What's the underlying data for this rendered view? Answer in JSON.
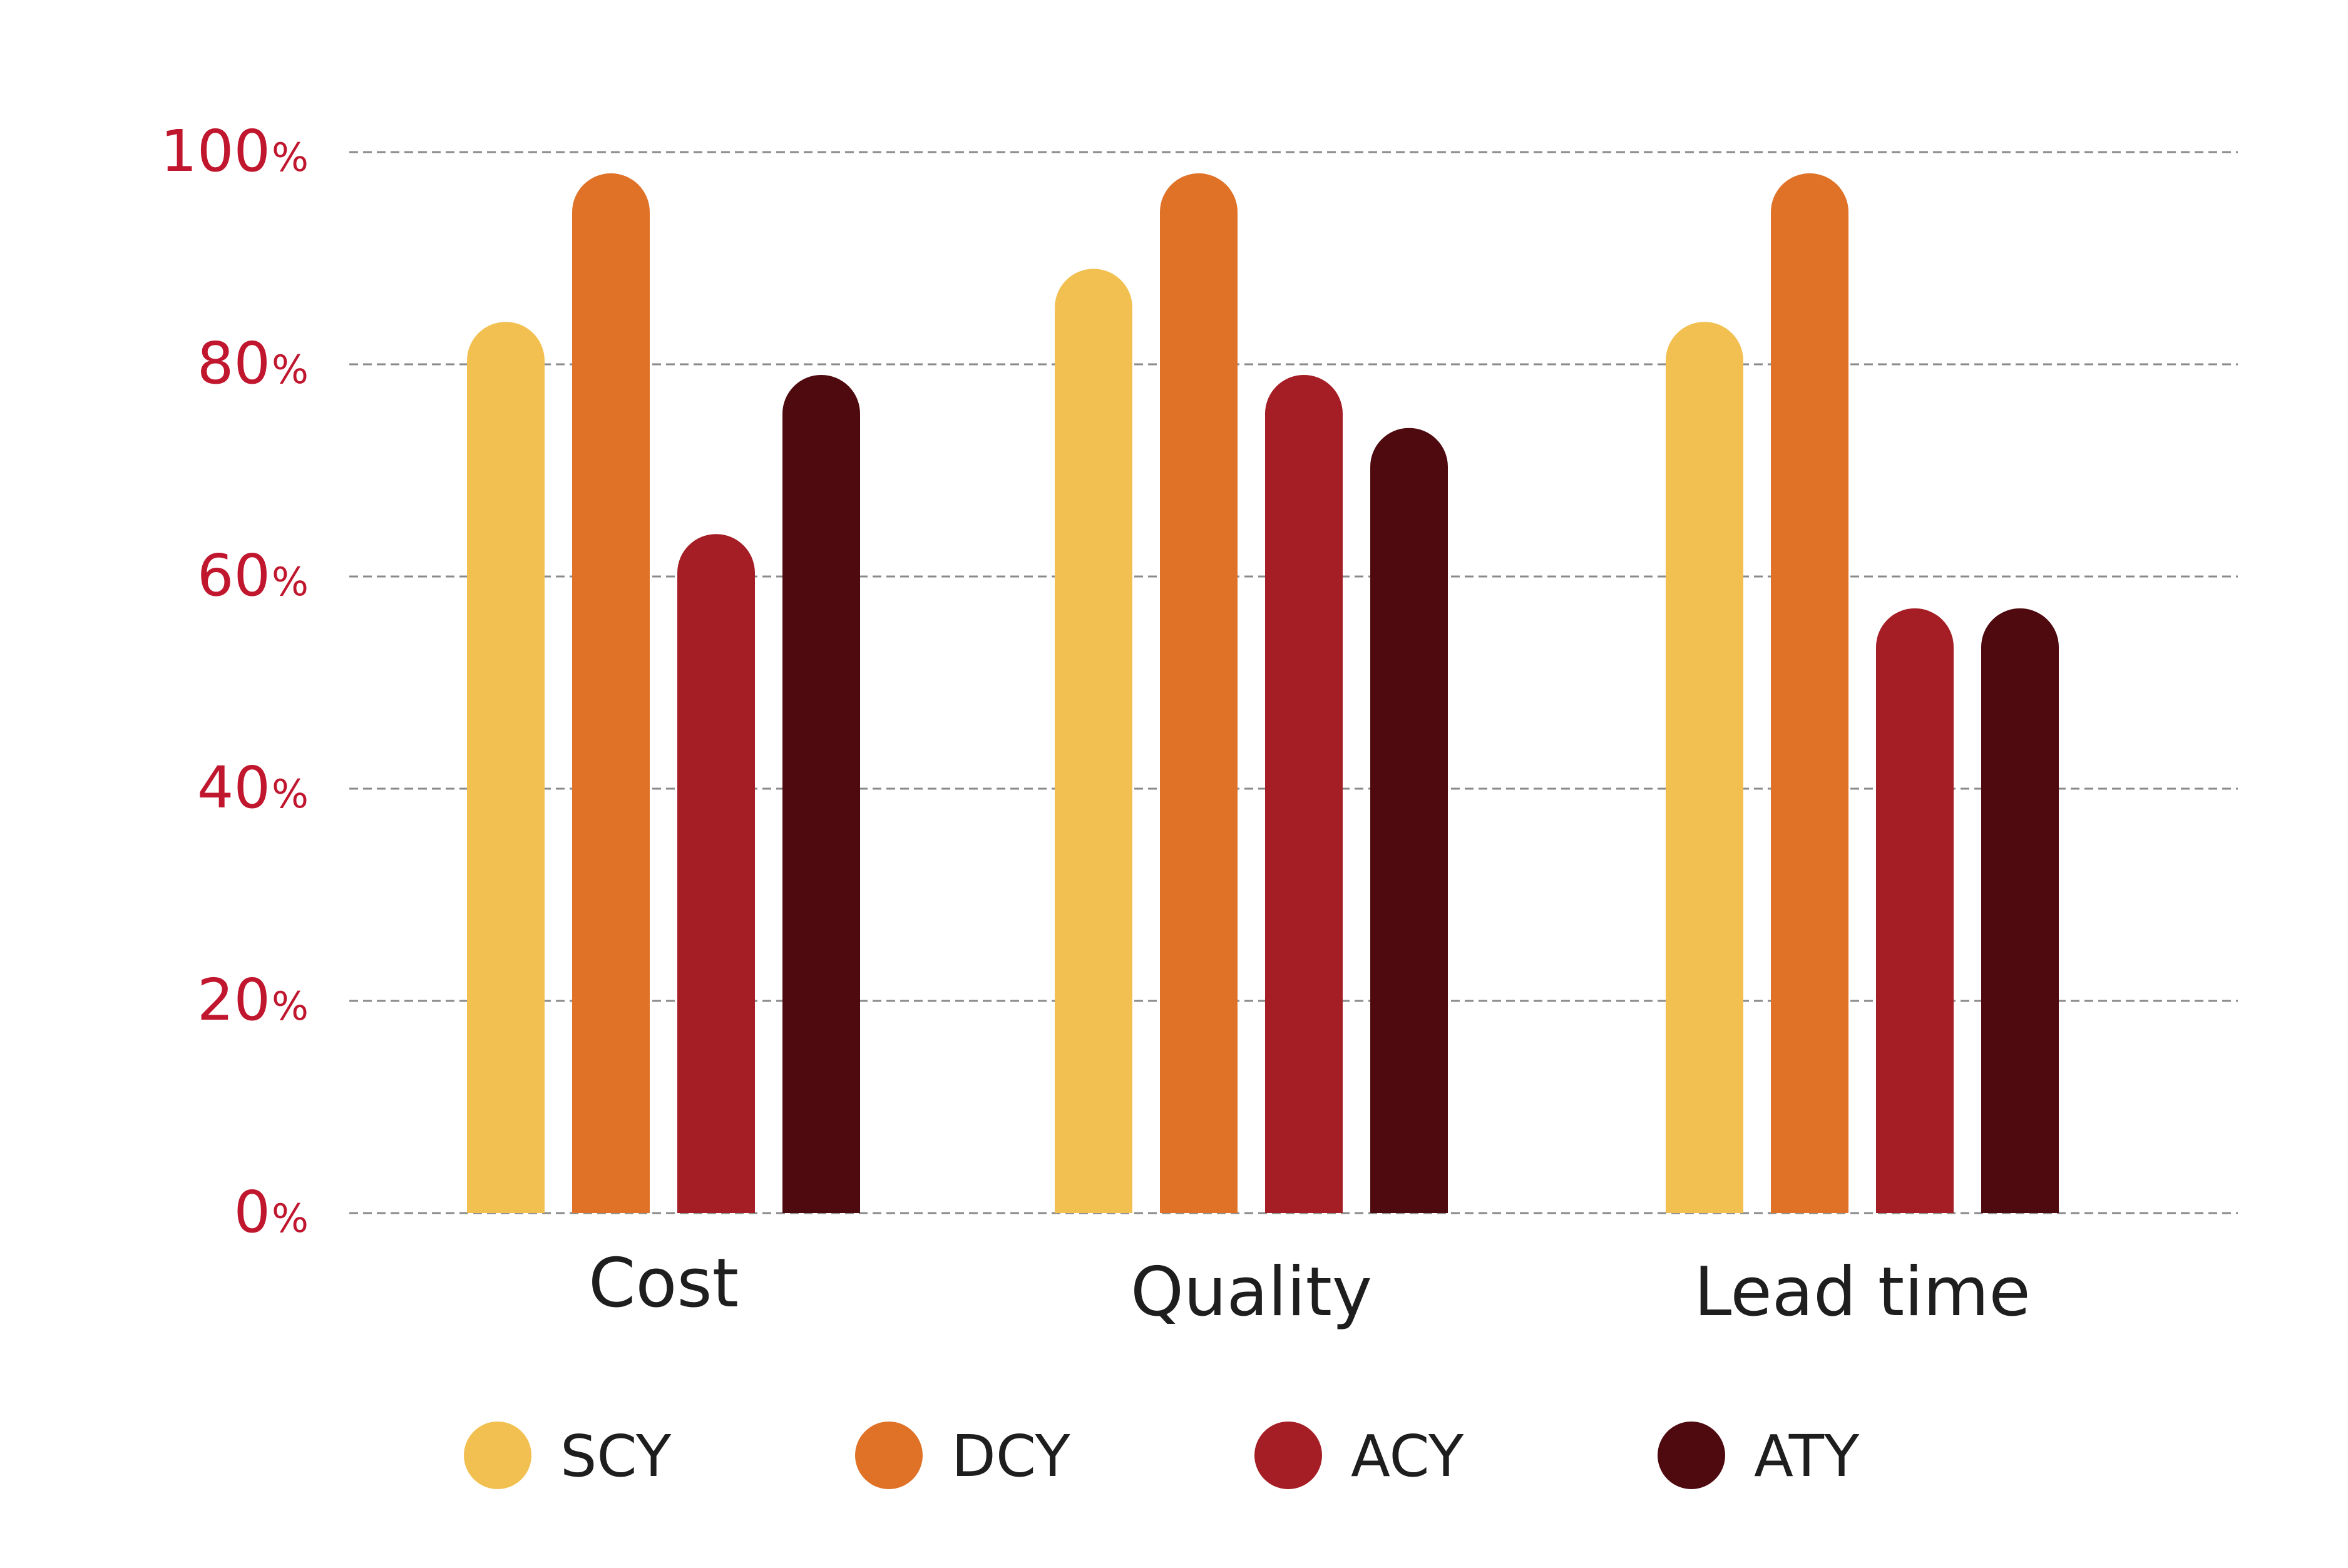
{
  "chart_data": {
    "type": "bar",
    "categories": [
      "Cost",
      "Quality",
      "Lead time"
    ],
    "series": [
      {
        "name": "SCY",
        "color": "#F2C051",
        "values": [
          84,
          89,
          84
        ]
      },
      {
        "name": "DCY",
        "color": "#E07228",
        "values": [
          98,
          98,
          98
        ]
      },
      {
        "name": "ACY",
        "color": "#A51D25",
        "values": [
          64,
          79,
          57
        ]
      },
      {
        "name": "ATY",
        "color": "#4F0A10",
        "values": [
          79,
          74,
          57
        ]
      }
    ],
    "ylim": [
      0,
      100
    ],
    "y_ticks": [
      {
        "value": 0,
        "label": "0",
        "unit": "%"
      },
      {
        "value": 20,
        "label": "20",
        "unit": "%"
      },
      {
        "value": 40,
        "label": "40",
        "unit": "%"
      },
      {
        "value": 60,
        "label": "60",
        "unit": "%"
      },
      {
        "value": 80,
        "label": "80",
        "unit": "%"
      },
      {
        "value": 100,
        "label": "100",
        "unit": "%"
      }
    ],
    "tick_label_color": "#C0162E",
    "grid": true,
    "legend_position": "bottom",
    "title": "",
    "xlabel": "",
    "ylabel": ""
  }
}
